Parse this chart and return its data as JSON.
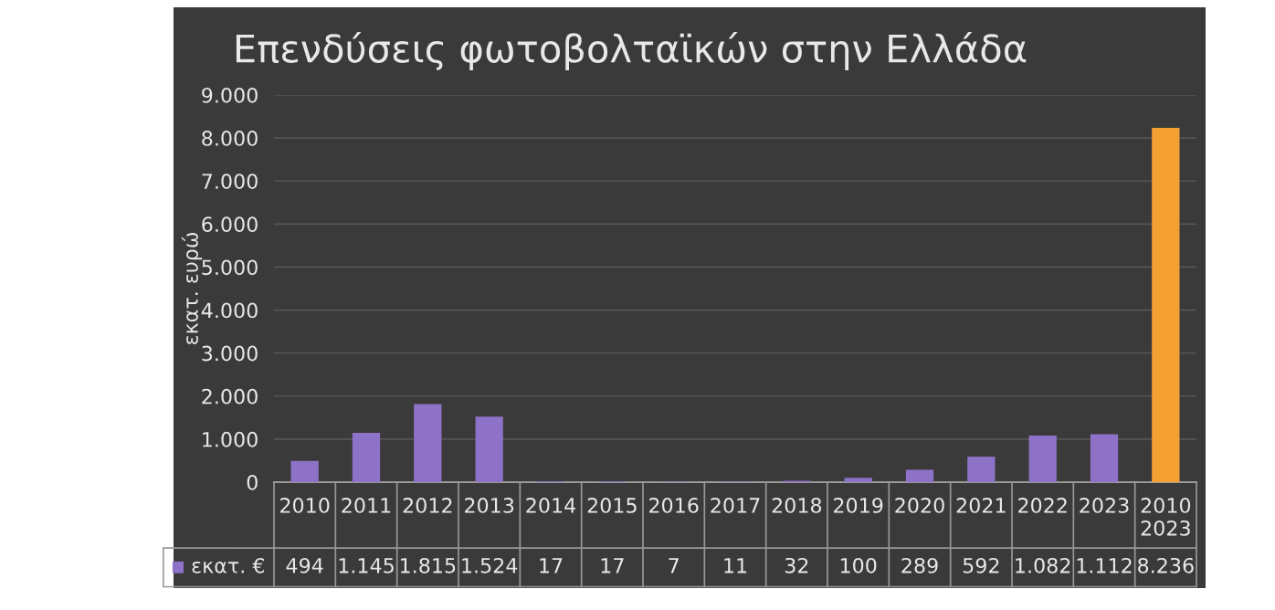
{
  "chart_data": {
    "type": "bar",
    "title": "Επενδύσεις φωτοβολταϊκών στην Ελλάδα",
    "ylabel": "εκατ. ευρώ",
    "categories": [
      "2010",
      "2011",
      "2012",
      "2013",
      "2014",
      "2015",
      "2016",
      "2017",
      "2018",
      "2019",
      "2020",
      "2021",
      "2022",
      "2023",
      "2010\n2023"
    ],
    "series": [
      {
        "name": "εκατ. €",
        "color": "#8e72c8",
        "colors": [
          "#8e72c8",
          "#8e72c8",
          "#8e72c8",
          "#8e72c8",
          "#8e72c8",
          "#8e72c8",
          "#8e72c8",
          "#8e72c8",
          "#8e72c8",
          "#8e72c8",
          "#8e72c8",
          "#8e72c8",
          "#8e72c8",
          "#8e72c8",
          "#f5a033"
        ],
        "values": [
          494,
          1145,
          1815,
          1524,
          17,
          17,
          7,
          11,
          32,
          100,
          289,
          592,
          1082,
          1112,
          8236
        ],
        "value_labels": [
          "494",
          "1.145",
          "1.815",
          "1.524",
          "17",
          "17",
          "7",
          "11",
          "32",
          "100",
          "289",
          "592",
          "1.082",
          "1.112",
          "8.236"
        ]
      }
    ],
    "ylim": [
      0,
      9000
    ],
    "yticks": [
      {
        "value": 0,
        "label": "0"
      },
      {
        "value": 1000,
        "label": "1.000"
      },
      {
        "value": 2000,
        "label": "2.000"
      },
      {
        "value": 3000,
        "label": "3.000"
      },
      {
        "value": 4000,
        "label": "4.000"
      },
      {
        "value": 5000,
        "label": "5.000"
      },
      {
        "value": 6000,
        "label": "6.000"
      },
      {
        "value": 7000,
        "label": "7.000"
      },
      {
        "value": 8000,
        "label": "8.000"
      },
      {
        "value": 9000,
        "label": "9.000"
      }
    ],
    "grid": "y",
    "legend": "bottom left"
  }
}
